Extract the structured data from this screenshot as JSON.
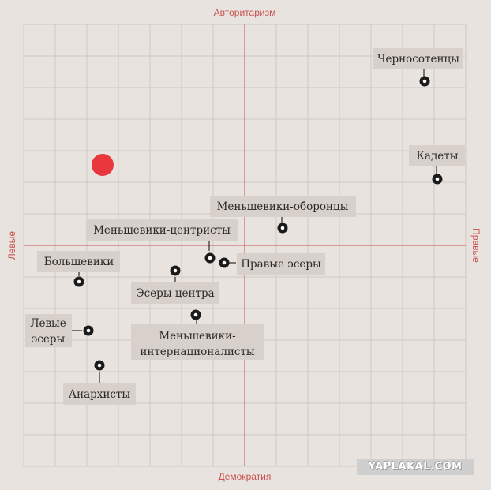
{
  "axes": {
    "top": "Авторитаризм",
    "bottom": "Демократия",
    "left": "Левые",
    "right": "Правые"
  },
  "colors": {
    "axis": "#c9504f",
    "grid": "#cfc8c4",
    "label_bg": "#d8d0ca",
    "marker": "#1a1a1a",
    "highlight": "#e8383d"
  },
  "highlight_point": {
    "x": -4.5,
    "y": 2.55
  },
  "parties": [
    {
      "name": "Черносотенцы",
      "x": 5.7,
      "y": 5.2
    },
    {
      "name": "Кадеты",
      "x": 6.1,
      "y": 2.1
    },
    {
      "name": "Меньшевики-оборонцы",
      "x": 1.2,
      "y": 0.55
    },
    {
      "name": "Меньшевики-центристы",
      "x": -1.1,
      "y": -0.4
    },
    {
      "name": "Правые эсеры",
      "x": -0.65,
      "y": -0.55
    },
    {
      "name": "Большевики",
      "x": -5.25,
      "y": -1.15
    },
    {
      "name": "Эсеры центра",
      "x": -2.2,
      "y": -0.8
    },
    {
      "name": "Меньшевики-интернационалисты",
      "x": -1.55,
      "y": -2.2
    },
    {
      "name": "Левые эсеры",
      "x": -4.95,
      "y": -2.7
    },
    {
      "name": "Анархисты",
      "x": -4.6,
      "y": -3.8
    }
  ],
  "watermark": "YAPLAKAL.COM"
}
